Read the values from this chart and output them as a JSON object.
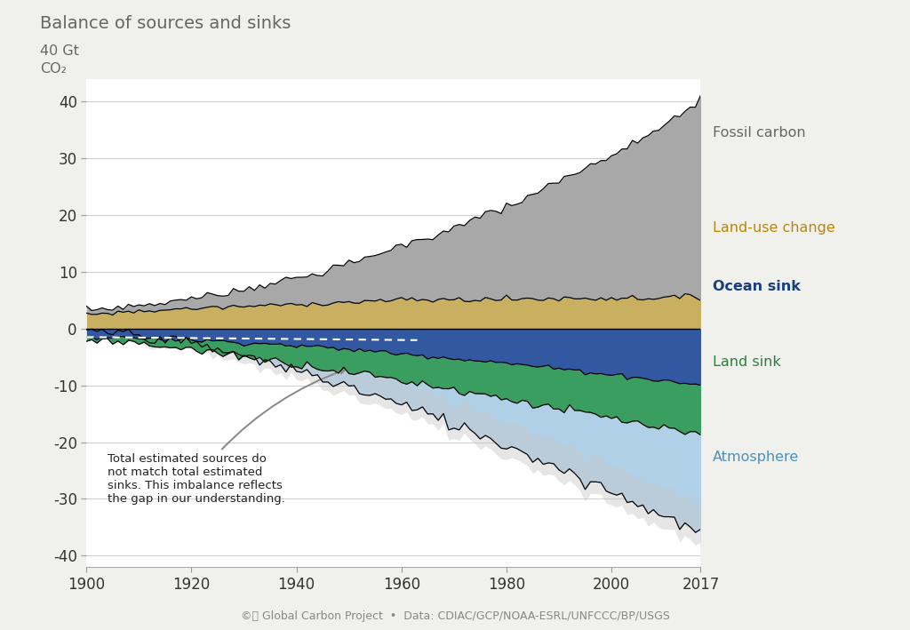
{
  "title": "Balance of sources and sinks",
  "xlim": [
    1900,
    2017
  ],
  "ylim": [
    -42,
    44
  ],
  "yticks": [
    -40,
    -30,
    -20,
    -10,
    0,
    10,
    20,
    30,
    40
  ],
  "xticks": [
    1900,
    1920,
    1940,
    1960,
    1980,
    2000,
    2017
  ],
  "background_color": "#f0f0ec",
  "plot_bg_color": "#ffffff",
  "fossil_color": "#a8a8a8",
  "landuse_color": "#c8b060",
  "ocean_color": "#3158a0",
  "landsink_color": "#3a9e60",
  "atmosphere_color": "#b0d0e8",
  "imbalance_color": "#c8c8c8",
  "legend_fossil_color": "#666666",
  "legend_landuse_color": "#b8860b",
  "legend_ocean_color": "#1a3f7f",
  "legend_landsink_color": "#2e7d45",
  "legend_atmos_color": "#5090b8",
  "legend_fossil": "Fossil carbon",
  "legend_landuse": "Land-use change",
  "legend_ocean": "Ocean sink",
  "legend_landsink": "Land sink",
  "legend_atmosphere": "Atmosphere",
  "annotation_text": "Total estimated sources do\nnot match total estimated\nsinks. This imbalance reflects\nthe gap in our understanding.",
  "footer": "©ⓘ Global Carbon Project  •  Data: CDIAC/GCP/NOAA-ESRL/UNFCCC/BP/USGS"
}
